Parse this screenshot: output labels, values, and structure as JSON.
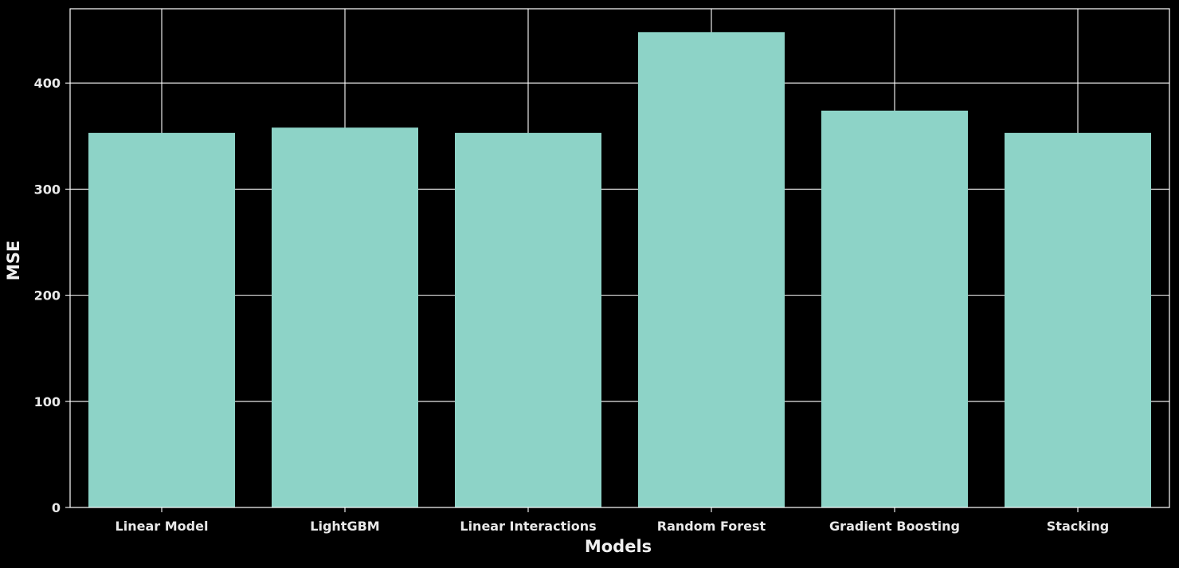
{
  "chart_data": {
    "type": "bar",
    "title": "",
    "xlabel": "Models",
    "ylabel": "MSE",
    "categories": [
      "Linear Model",
      "LightGBM",
      "Linear Interactions",
      "Random Forest",
      "Gradient Boosting",
      "Stacking"
    ],
    "values": [
      353,
      358,
      353,
      448,
      374,
      353
    ],
    "ylim": [
      0,
      470
    ],
    "yticks": [
      0,
      100,
      200,
      300,
      400
    ],
    "grid": true,
    "colors": {
      "background": "#000000",
      "bar": "#8dd3c7",
      "grid": "#ffffff",
      "text": "#e8e8e8"
    }
  }
}
